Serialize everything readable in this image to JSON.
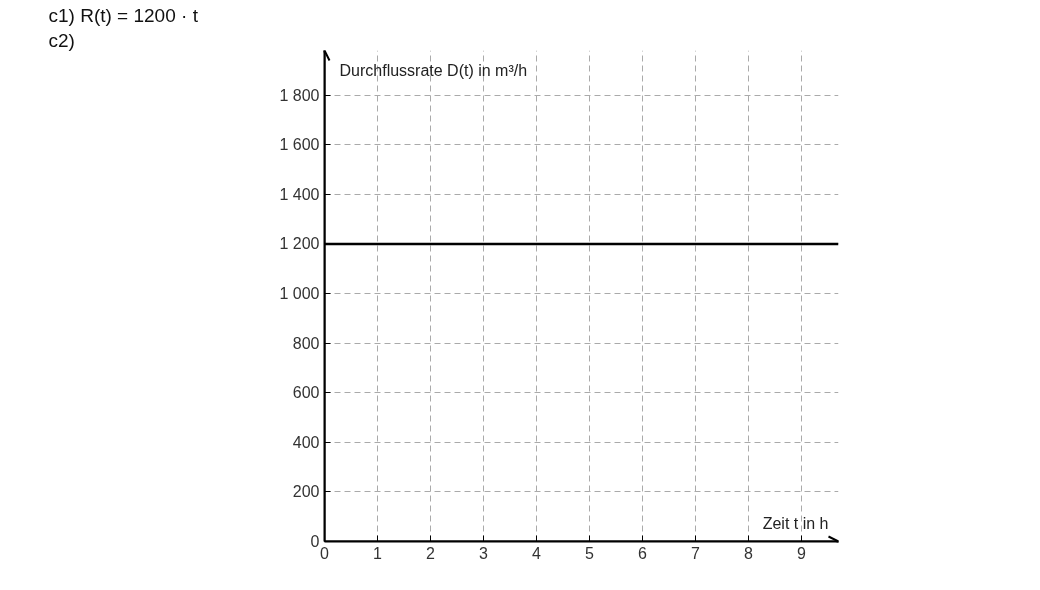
{
  "chart_data": {
    "type": "line",
    "xlabel": "Zeit t in h",
    "ylabel": "Durchflussrate D(t) in m³/h",
    "annotations": [
      "c1)  R(t) = 1200 · t",
      "c2)"
    ],
    "xlim": [
      0,
      9.7
    ],
    "ylim": [
      0,
      1980
    ],
    "xticks": [
      0,
      1,
      2,
      3,
      4,
      5,
      6,
      7,
      8,
      9
    ],
    "yticks": [
      0,
      200,
      400,
      600,
      800,
      {
        "value": 1000,
        "label": "1 000"
      },
      {
        "value": 1200,
        "label": "1 200"
      },
      {
        "value": 1400,
        "label": "1 400"
      },
      {
        "value": 1600,
        "label": "1 600"
      },
      {
        "value": 1800,
        "label": "1 800"
      }
    ],
    "grid": true,
    "line_style": "solid",
    "series": [
      {
        "color": "#000000",
        "x": [
          0,
          9.7
        ],
        "values": [
          1200,
          1200
        ]
      }
    ]
  }
}
